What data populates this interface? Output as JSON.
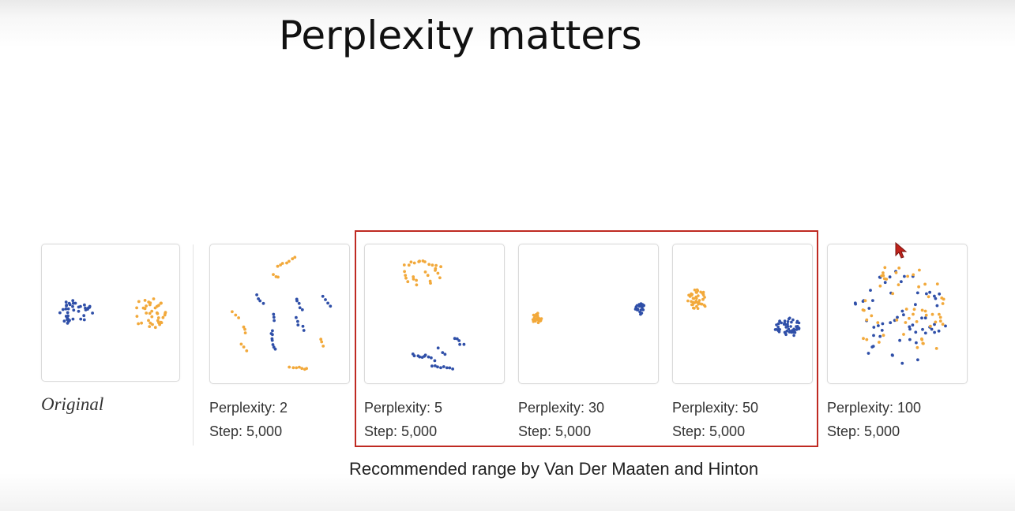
{
  "title": "Perplexity matters",
  "original_label": "Original",
  "panels": [
    {
      "perplexity": "Perplexity: 2",
      "step": "Step: 5,000"
    },
    {
      "perplexity": "Perplexity: 5",
      "step": "Step: 5,000"
    },
    {
      "perplexity": "Perplexity: 30",
      "step": "Step: 5,000"
    },
    {
      "perplexity": "Perplexity: 50",
      "step": "Step: 5,000"
    },
    {
      "perplexity": "Perplexity: 100",
      "step": "Step: 5,000"
    }
  ],
  "recommended_note": "Recommended range by Van Der Maaten and Hinton",
  "colors": {
    "cluster_a": "#2f4fa8",
    "cluster_b": "#f2a93b",
    "highlight_box": "#bf2a22"
  }
}
